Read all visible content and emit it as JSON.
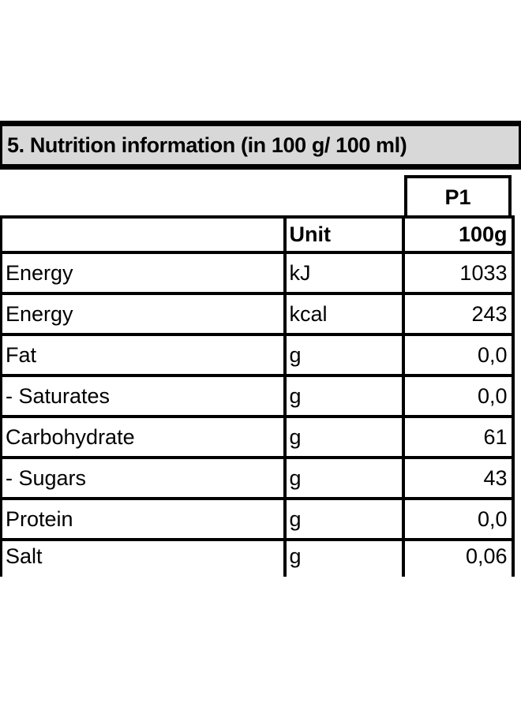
{
  "page": {
    "background": "#ffffff",
    "text_color": "#000000"
  },
  "section_header": {
    "title": "5. Nutrition information (in 100 g/ 100 ml)",
    "background": "#d8d8d8",
    "border_color": "#000000"
  },
  "table": {
    "product_header": "P1",
    "columns": {
      "nutrient": "",
      "unit": "Unit",
      "amount": "100g"
    },
    "rows": [
      {
        "nutrient": "Energy",
        "unit": "kJ",
        "amount": "1033"
      },
      {
        "nutrient": "Energy",
        "unit": "kcal",
        "amount": "243"
      },
      {
        "nutrient": "Fat",
        "unit": "g",
        "amount": "0,0"
      },
      {
        "nutrient": "- Saturates",
        "unit": "g",
        "amount": "0,0"
      },
      {
        "nutrient": "Carbohydrate",
        "unit": "g",
        "amount": "61"
      },
      {
        "nutrient": "- Sugars",
        "unit": "g",
        "amount": "43"
      },
      {
        "nutrient": "Protein",
        "unit": "g",
        "amount": "0,0"
      },
      {
        "nutrient": "Salt",
        "unit": "g",
        "amount": "0,06"
      }
    ]
  }
}
